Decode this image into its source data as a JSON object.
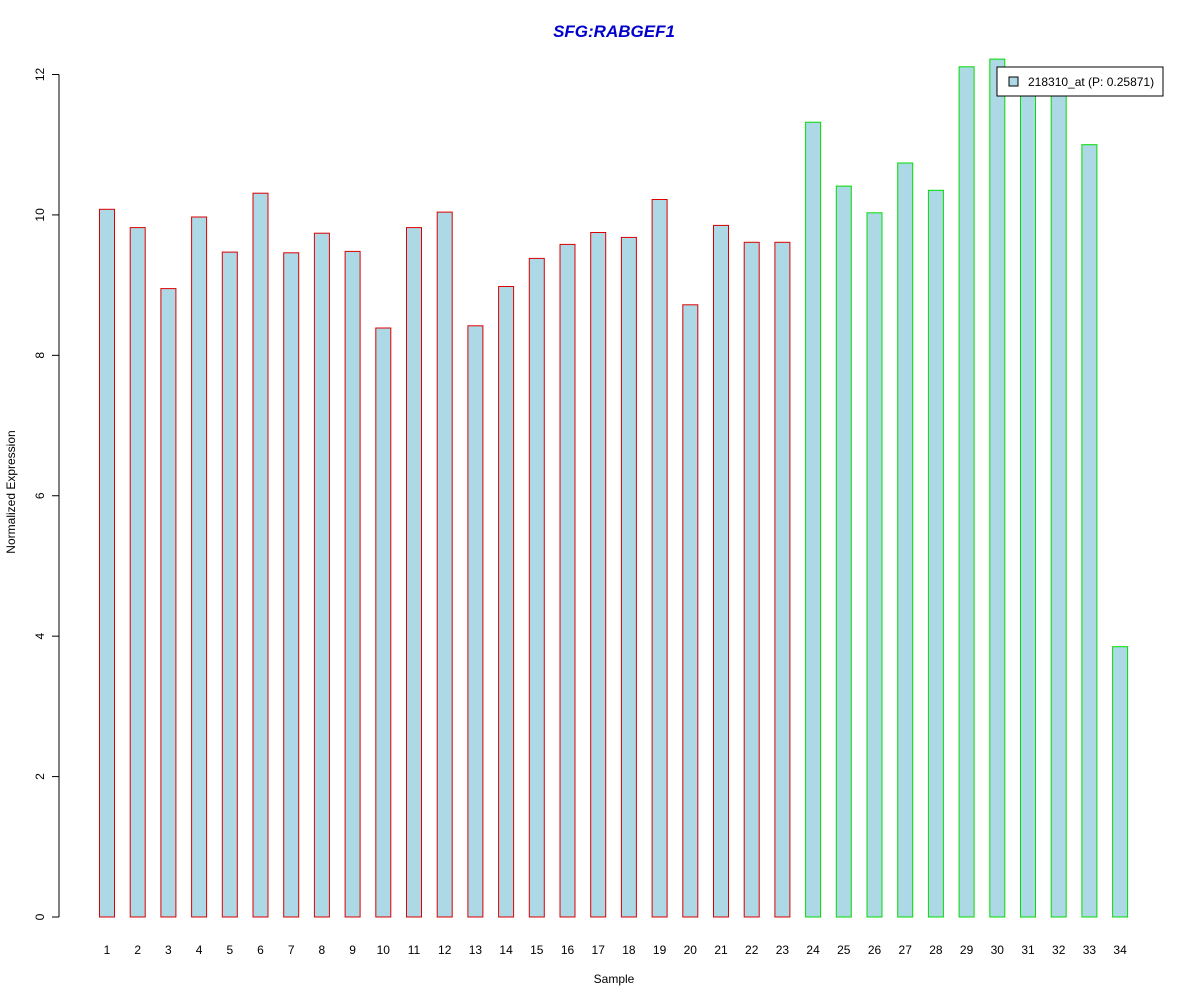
{
  "chart_data": {
    "type": "bar",
    "title": "SFG:RABGEF1",
    "xlabel": "Sample",
    "ylabel": "Normalized Expression",
    "ylim": [
      0,
      12
    ],
    "yticks": [
      "0",
      "2",
      "4",
      "6",
      "8",
      "10",
      "12"
    ],
    "categories": [
      "1",
      "2",
      "3",
      "4",
      "5",
      "6",
      "7",
      "8",
      "9",
      "10",
      "11",
      "12",
      "13",
      "14",
      "15",
      "16",
      "17",
      "18",
      "19",
      "20",
      "21",
      "22",
      "23",
      "24",
      "25",
      "26",
      "27",
      "28",
      "29",
      "30",
      "31",
      "32",
      "33",
      "34"
    ],
    "series": [
      {
        "name": "218310_at (P: 0.25871)",
        "values": [
          10.08,
          9.82,
          8.95,
          9.97,
          9.47,
          10.31,
          9.46,
          9.74,
          9.48,
          8.39,
          9.82,
          10.04,
          8.42,
          8.98,
          9.38,
          9.58,
          9.75,
          9.68,
          10.22,
          8.72,
          9.85,
          9.61,
          9.61,
          11.32,
          10.41,
          10.03,
          10.74,
          10.35,
          12.11,
          12.22,
          11.73,
          11.73,
          11.0,
          3.85
        ]
      }
    ],
    "groups": [
      {
        "samples": [
          "1",
          "2",
          "3",
          "4",
          "5",
          "6",
          "7",
          "8",
          "9",
          "10",
          "11",
          "12",
          "13",
          "14",
          "15",
          "16",
          "17",
          "18",
          "19",
          "20",
          "21",
          "22",
          "23"
        ],
        "border_color": "#dd0000"
      },
      {
        "samples": [
          "24",
          "25",
          "26",
          "27",
          "28",
          "29",
          "30",
          "31",
          "32",
          "33",
          "34"
        ],
        "border_color": "#00dd00"
      }
    ],
    "legend": {
      "label": "218310_at (P: 0.25871)",
      "position": "top-right"
    },
    "colors": {
      "bar_fill": "#add8e6",
      "title": "#0000cc",
      "group1_border": "#dd0000",
      "group2_border": "#00dd00"
    },
    "grid": false
  }
}
